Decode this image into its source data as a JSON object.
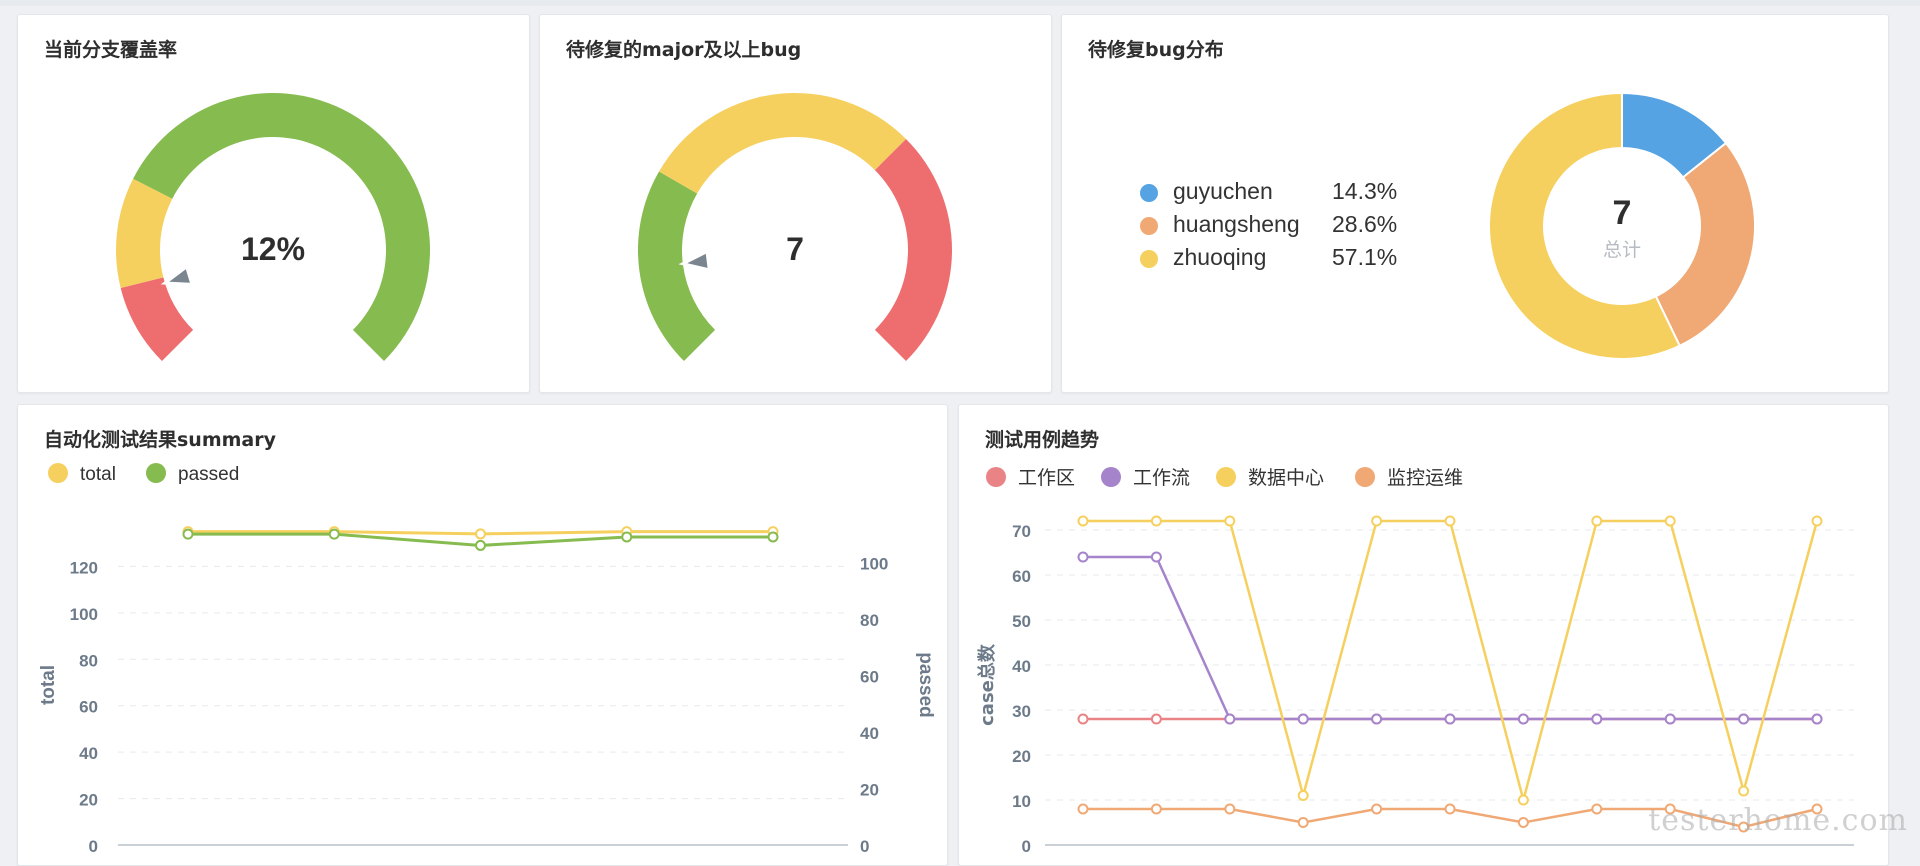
{
  "gauge1": {
    "title": "当前分支覆盖率",
    "value_text": "12%",
    "value": 12,
    "min": 0,
    "max": 100
  },
  "gauge2": {
    "title": "待修复的major及以上bug",
    "value_text": "7",
    "value": 7
  },
  "bug_dist": {
    "title": "待修复bug分布",
    "center_value": "7",
    "center_label": "总计",
    "items": [
      {
        "name": "guyuchen",
        "percent": "14.3%",
        "value": 1,
        "color": "#56a3e3"
      },
      {
        "name": "huangsheng",
        "percent": "28.6%",
        "value": 2,
        "color": "#f0a874"
      },
      {
        "name": "zhuoqing",
        "percent": "57.1%",
        "value": 4,
        "color": "#f6d05e"
      }
    ]
  },
  "auto_test": {
    "title": "自动化测试结果summary",
    "legend": [
      {
        "name": "total",
        "color": "#f6d05e"
      },
      {
        "name": "passed",
        "color": "#86bb4f"
      }
    ],
    "left_axis_label": "total",
    "right_axis_label": "passed",
    "left_ticks": [
      "0",
      "20",
      "40",
      "60",
      "80",
      "100",
      "120"
    ],
    "right_ticks": [
      "0",
      "20",
      "40",
      "60",
      "80",
      "100"
    ]
  },
  "case_trend": {
    "title": "测试用例趋势",
    "legend": [
      {
        "name": "工作区",
        "color": "#ea8385"
      },
      {
        "name": "工作流",
        "color": "#a584cc"
      },
      {
        "name": "数据中心",
        "color": "#f6d05e"
      },
      {
        "name": "监控运维",
        "color": "#f0a874"
      }
    ],
    "y_axis_label": "case总数",
    "y_ticks": [
      "0",
      "10",
      "20",
      "30",
      "40",
      "50",
      "60",
      "70"
    ]
  },
  "chart_data": [
    {
      "type": "line",
      "title": "自动化测试结果summary",
      "ylabel": "total",
      "y2label": "passed",
      "ylim": [
        0,
        140
      ],
      "y2lim": [
        0,
        115
      ],
      "x": [
        1,
        2,
        3,
        4,
        5
      ],
      "series": [
        {
          "name": "total",
          "axis": "left",
          "color": "#f6d05e",
          "values": [
            135,
            135,
            134,
            135,
            135
          ]
        },
        {
          "name": "passed",
          "axis": "right",
          "color": "#86bb4f",
          "values": [
            110,
            110,
            106,
            109,
            109
          ]
        }
      ]
    },
    {
      "type": "line",
      "title": "测试用例趋势",
      "ylabel": "case总数",
      "ylim": [
        0,
        75
      ],
      "x": [
        1,
        2,
        3,
        4,
        5,
        6,
        7,
        8,
        9,
        10,
        11
      ],
      "series": [
        {
          "name": "工作区",
          "color": "#ea8385",
          "values": [
            28,
            28,
            28,
            28,
            28,
            28,
            28,
            28,
            28,
            28,
            28
          ]
        },
        {
          "name": "工作流",
          "color": "#a584cc",
          "values": [
            64,
            64,
            28,
            28,
            28,
            28,
            28,
            28,
            28,
            28,
            28
          ]
        },
        {
          "name": "数据中心",
          "color": "#f6d05e",
          "values": [
            72,
            72,
            72,
            11,
            72,
            72,
            10,
            72,
            72,
            12,
            72
          ]
        },
        {
          "name": "监控运维",
          "color": "#f0a874",
          "values": [
            8,
            8,
            8,
            5,
            8,
            8,
            5,
            8,
            8,
            4,
            8
          ]
        }
      ]
    }
  ],
  "watermark": "testerhome.com"
}
